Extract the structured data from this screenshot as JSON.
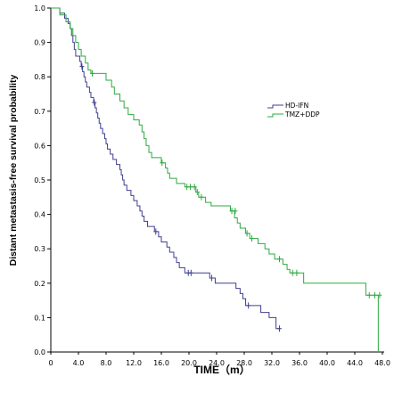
{
  "chart_data": {
    "type": "line",
    "step": true,
    "title": "",
    "xlabel": "TIME（m）",
    "ylabel": "Distant metastasis-free survival probability",
    "xlim": [
      0,
      48
    ],
    "ylim": [
      0,
      1.0
    ],
    "x_ticks": [
      "0",
      "4.0",
      "8.0",
      "12.0",
      "16.0",
      "20.0",
      "24.0",
      "28.0",
      "32.0",
      "36.0",
      "40.0",
      "44.0",
      "48.0"
    ],
    "y_ticks": [
      "0.0",
      "0.1",
      "0.2",
      "0.3",
      "0.4",
      "0.5",
      "0.6",
      "0.7",
      "0.8",
      "0.9",
      "1.0"
    ],
    "grid": false,
    "legend_position": "right",
    "series": [
      {
        "name": "HD-IFN",
        "color": "#3f3f8f",
        "points": [
          [
            0,
            1.0
          ],
          [
            1.3,
            1.0
          ],
          [
            1.3,
            0.985
          ],
          [
            2.0,
            0.985
          ],
          [
            2.0,
            0.97
          ],
          [
            2.5,
            0.97
          ],
          [
            2.5,
            0.955
          ],
          [
            2.8,
            0.955
          ],
          [
            2.8,
            0.94
          ],
          [
            3.0,
            0.94
          ],
          [
            3.0,
            0.92
          ],
          [
            3.2,
            0.92
          ],
          [
            3.2,
            0.9
          ],
          [
            3.4,
            0.9
          ],
          [
            3.4,
            0.88
          ],
          [
            3.6,
            0.88
          ],
          [
            3.6,
            0.86
          ],
          [
            4.2,
            0.86
          ],
          [
            4.2,
            0.845
          ],
          [
            4.4,
            0.845
          ],
          [
            4.4,
            0.83
          ],
          [
            4.6,
            0.83
          ],
          [
            4.6,
            0.815
          ],
          [
            4.8,
            0.815
          ],
          [
            4.8,
            0.8
          ],
          [
            5.0,
            0.8
          ],
          [
            5.0,
            0.785
          ],
          [
            5.2,
            0.785
          ],
          [
            5.2,
            0.77
          ],
          [
            5.6,
            0.77
          ],
          [
            5.6,
            0.755
          ],
          [
            5.8,
            0.755
          ],
          [
            5.8,
            0.74
          ],
          [
            6.2,
            0.74
          ],
          [
            6.2,
            0.725
          ],
          [
            6.4,
            0.725
          ],
          [
            6.4,
            0.71
          ],
          [
            6.6,
            0.71
          ],
          [
            6.6,
            0.695
          ],
          [
            6.8,
            0.695
          ],
          [
            6.8,
            0.68
          ],
          [
            7.0,
            0.68
          ],
          [
            7.0,
            0.665
          ],
          [
            7.2,
            0.665
          ],
          [
            7.2,
            0.65
          ],
          [
            7.5,
            0.65
          ],
          [
            7.5,
            0.635
          ],
          [
            7.8,
            0.635
          ],
          [
            7.8,
            0.62
          ],
          [
            8.0,
            0.62
          ],
          [
            8.0,
            0.605
          ],
          [
            8.2,
            0.605
          ],
          [
            8.2,
            0.59
          ],
          [
            8.6,
            0.59
          ],
          [
            8.6,
            0.575
          ],
          [
            9.0,
            0.575
          ],
          [
            9.0,
            0.56
          ],
          [
            9.5,
            0.56
          ],
          [
            9.5,
            0.545
          ],
          [
            10.0,
            0.545
          ],
          [
            10.0,
            0.53
          ],
          [
            10.2,
            0.53
          ],
          [
            10.2,
            0.515
          ],
          [
            10.4,
            0.515
          ],
          [
            10.4,
            0.5
          ],
          [
            10.6,
            0.5
          ],
          [
            10.6,
            0.485
          ],
          [
            11.0,
            0.485
          ],
          [
            11.0,
            0.47
          ],
          [
            11.6,
            0.47
          ],
          [
            11.6,
            0.455
          ],
          [
            12.0,
            0.455
          ],
          [
            12.0,
            0.44
          ],
          [
            12.5,
            0.44
          ],
          [
            12.5,
            0.425
          ],
          [
            12.9,
            0.425
          ],
          [
            12.9,
            0.41
          ],
          [
            13.2,
            0.41
          ],
          [
            13.2,
            0.395
          ],
          [
            13.5,
            0.395
          ],
          [
            13.5,
            0.38
          ],
          [
            14.0,
            0.38
          ],
          [
            14.0,
            0.365
          ],
          [
            15.0,
            0.365
          ],
          [
            15.0,
            0.35
          ],
          [
            15.6,
            0.35
          ],
          [
            15.6,
            0.335
          ],
          [
            16.0,
            0.335
          ],
          [
            16.0,
            0.32
          ],
          [
            16.8,
            0.32
          ],
          [
            16.8,
            0.305
          ],
          [
            17.2,
            0.305
          ],
          [
            17.2,
            0.29
          ],
          [
            17.8,
            0.29
          ],
          [
            17.8,
            0.275
          ],
          [
            18.2,
            0.275
          ],
          [
            18.2,
            0.26
          ],
          [
            18.6,
            0.26
          ],
          [
            18.6,
            0.245
          ],
          [
            19.4,
            0.245
          ],
          [
            19.4,
            0.23
          ],
          [
            23.0,
            0.23
          ],
          [
            23.0,
            0.215
          ],
          [
            23.8,
            0.215
          ],
          [
            23.8,
            0.2
          ],
          [
            26.8,
            0.2
          ],
          [
            26.8,
            0.185
          ],
          [
            27.4,
            0.185
          ],
          [
            27.4,
            0.17
          ],
          [
            27.8,
            0.17
          ],
          [
            27.8,
            0.155
          ],
          [
            28.2,
            0.155
          ],
          [
            28.2,
            0.135
          ],
          [
            30.4,
            0.135
          ],
          [
            30.4,
            0.115
          ],
          [
            31.6,
            0.115
          ],
          [
            31.6,
            0.1
          ],
          [
            32.6,
            0.1
          ],
          [
            32.6,
            0.068
          ],
          [
            33.2,
            0.068
          ]
        ],
        "censored": [
          [
            4.5,
            0.83
          ],
          [
            6.3,
            0.725
          ],
          [
            15.2,
            0.35
          ],
          [
            19.9,
            0.23
          ],
          [
            20.3,
            0.23
          ],
          [
            23.3,
            0.215
          ],
          [
            28.6,
            0.135
          ],
          [
            33.1,
            0.068
          ]
        ]
      },
      {
        "name": "TMZ+DDP",
        "color": "#2eaa40",
        "points": [
          [
            0,
            1.0
          ],
          [
            1.3,
            1.0
          ],
          [
            1.3,
            0.98
          ],
          [
            2.2,
            0.98
          ],
          [
            2.2,
            0.96
          ],
          [
            2.8,
            0.96
          ],
          [
            2.8,
            0.94
          ],
          [
            3.2,
            0.94
          ],
          [
            3.2,
            0.92
          ],
          [
            3.6,
            0.92
          ],
          [
            3.6,
            0.9
          ],
          [
            4.0,
            0.9
          ],
          [
            4.0,
            0.88
          ],
          [
            4.4,
            0.88
          ],
          [
            4.4,
            0.86
          ],
          [
            5.0,
            0.86
          ],
          [
            5.0,
            0.84
          ],
          [
            5.4,
            0.84
          ],
          [
            5.4,
            0.82
          ],
          [
            5.8,
            0.82
          ],
          [
            5.8,
            0.81
          ],
          [
            8.0,
            0.81
          ],
          [
            8.0,
            0.79
          ],
          [
            8.8,
            0.79
          ],
          [
            8.8,
            0.77
          ],
          [
            9.2,
            0.77
          ],
          [
            9.2,
            0.75
          ],
          [
            10.0,
            0.75
          ],
          [
            10.0,
            0.73
          ],
          [
            10.6,
            0.73
          ],
          [
            10.6,
            0.71
          ],
          [
            11.2,
            0.71
          ],
          [
            11.2,
            0.69
          ],
          [
            12.0,
            0.69
          ],
          [
            12.0,
            0.675
          ],
          [
            12.8,
            0.675
          ],
          [
            12.8,
            0.66
          ],
          [
            13.2,
            0.66
          ],
          [
            13.2,
            0.64
          ],
          [
            13.5,
            0.64
          ],
          [
            13.5,
            0.62
          ],
          [
            13.8,
            0.62
          ],
          [
            13.8,
            0.6
          ],
          [
            14.2,
            0.6
          ],
          [
            14.2,
            0.58
          ],
          [
            14.6,
            0.58
          ],
          [
            14.6,
            0.565
          ],
          [
            16.0,
            0.565
          ],
          [
            16.0,
            0.55
          ],
          [
            16.6,
            0.55
          ],
          [
            16.6,
            0.535
          ],
          [
            16.9,
            0.535
          ],
          [
            16.9,
            0.52
          ],
          [
            17.2,
            0.52
          ],
          [
            17.2,
            0.505
          ],
          [
            18.2,
            0.505
          ],
          [
            18.2,
            0.49
          ],
          [
            19.4,
            0.49
          ],
          [
            19.4,
            0.48
          ],
          [
            21.0,
            0.48
          ],
          [
            21.0,
            0.465
          ],
          [
            21.4,
            0.465
          ],
          [
            21.4,
            0.45
          ],
          [
            22.4,
            0.45
          ],
          [
            22.4,
            0.435
          ],
          [
            23.2,
            0.435
          ],
          [
            23.2,
            0.425
          ],
          [
            26.0,
            0.425
          ],
          [
            26.0,
            0.41
          ],
          [
            26.6,
            0.41
          ],
          [
            26.6,
            0.39
          ],
          [
            27.0,
            0.39
          ],
          [
            27.0,
            0.375
          ],
          [
            27.4,
            0.375
          ],
          [
            27.4,
            0.36
          ],
          [
            28.2,
            0.36
          ],
          [
            28.2,
            0.345
          ],
          [
            28.8,
            0.345
          ],
          [
            28.8,
            0.33
          ],
          [
            30.0,
            0.33
          ],
          [
            30.0,
            0.315
          ],
          [
            31.0,
            0.315
          ],
          [
            31.0,
            0.3
          ],
          [
            31.6,
            0.3
          ],
          [
            31.6,
            0.285
          ],
          [
            32.4,
            0.285
          ],
          [
            32.4,
            0.27
          ],
          [
            33.6,
            0.27
          ],
          [
            33.6,
            0.255
          ],
          [
            34.2,
            0.255
          ],
          [
            34.2,
            0.24
          ],
          [
            34.6,
            0.24
          ],
          [
            34.6,
            0.23
          ],
          [
            36.6,
            0.23
          ],
          [
            36.6,
            0.2
          ],
          [
            45.6,
            0.2
          ],
          [
            45.6,
            0.165
          ],
          [
            47.4,
            0.165
          ],
          [
            47.4,
            0.0
          ]
        ],
        "censored": [
          [
            6.0,
            0.81
          ],
          [
            16.1,
            0.55
          ],
          [
            19.7,
            0.48
          ],
          [
            20.2,
            0.48
          ],
          [
            20.8,
            0.48
          ],
          [
            21.2,
            0.465
          ],
          [
            21.8,
            0.45
          ],
          [
            26.2,
            0.41
          ],
          [
            26.7,
            0.41
          ],
          [
            28.4,
            0.345
          ],
          [
            29.1,
            0.33
          ],
          [
            33.1,
            0.27
          ],
          [
            35.0,
            0.23
          ],
          [
            35.6,
            0.23
          ],
          [
            46.1,
            0.165
          ],
          [
            46.9,
            0.165
          ],
          [
            47.6,
            0.165
          ]
        ]
      }
    ]
  }
}
